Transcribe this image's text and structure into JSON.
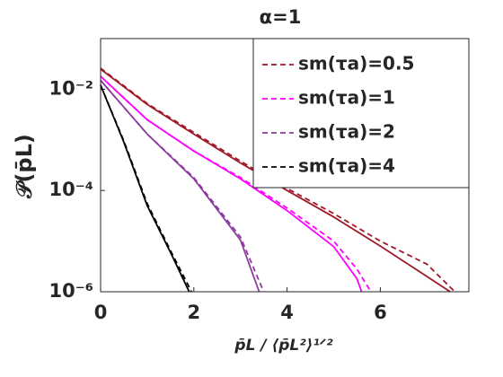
{
  "chart_data": {
    "type": "line",
    "title": "α=1",
    "xlabel": "p̄L / ⟨p̄L²⟩¹ᐟ²",
    "ylabel": "𝒫(p̄L)",
    "xlim": [
      0,
      7.9
    ],
    "ylim": [
      1e-06,
      0.1
    ],
    "log_y": true,
    "xticks": [
      0,
      2,
      4,
      6
    ],
    "yticks": [
      {
        "value": 1e-06,
        "label": "10⁻⁶"
      },
      {
        "value": 0.0001,
        "label": "10⁻⁴"
      },
      {
        "value": 0.01,
        "label": "10⁻²"
      }
    ],
    "legend": "upper right",
    "series": [
      {
        "color": "#a0192a",
        "dash": false,
        "x": [
          0,
          1,
          2,
          3,
          4,
          5,
          6,
          7,
          7.5
        ],
        "values": [
          0.025,
          0.005,
          0.0013,
          0.00035,
          0.0001,
          3e-05,
          8e-06,
          2e-06,
          1e-06
        ]
      },
      {
        "name": "sm(τa)=0.5",
        "color": "#a0192a",
        "dash": true,
        "x": [
          0,
          1,
          2,
          3,
          4,
          5,
          6,
          7,
          7.6
        ],
        "values": [
          0.026,
          0.0052,
          0.0014,
          0.00038,
          0.00011,
          3.5e-05,
          1e-05,
          3.5e-06,
          1e-06
        ]
      },
      {
        "color": "#ff00ff",
        "dash": false,
        "x": [
          0,
          1,
          2,
          3,
          4,
          5,
          5.5,
          5.6
        ],
        "values": [
          0.018,
          0.0025,
          0.0006,
          0.00017,
          4e-05,
          7.8e-06,
          1.8e-06,
          1e-06
        ]
      },
      {
        "name": "sm(τa)=1",
        "color": "#ff00ff",
        "dash": true,
        "x": [
          0,
          1,
          2,
          3,
          4,
          5,
          5.5,
          5.8
        ],
        "values": [
          0.018,
          0.0025,
          0.0006,
          0.00018,
          4.5e-05,
          1e-05,
          2.8e-06,
          1e-06
        ]
      },
      {
        "color": "#8e3ba0",
        "dash": false,
        "x": [
          0,
          1,
          2,
          3,
          3.4
        ],
        "values": [
          0.015,
          0.0013,
          0.00017,
          1.05e-05,
          1e-06
        ]
      },
      {
        "name": "sm(τa)=2",
        "color": "#8e3ba0",
        "dash": true,
        "x": [
          0,
          1,
          2,
          3,
          3.5
        ],
        "values": [
          0.015,
          0.0013,
          0.00018,
          1.2e-05,
          1e-06
        ]
      },
      {
        "color": "#000000",
        "dash": false,
        "x": [
          0,
          0.5,
          1,
          1.5,
          1.9
        ],
        "values": [
          0.012,
          0.0009,
          5e-05,
          6e-06,
          1e-06
        ]
      },
      {
        "name": "sm(τa)=4",
        "color": "#000000",
        "dash": true,
        "x": [
          0,
          0.5,
          1,
          1.5,
          1.95
        ],
        "values": [
          0.012,
          0.00095,
          5.5e-05,
          6.5e-06,
          1e-06
        ]
      }
    ]
  }
}
